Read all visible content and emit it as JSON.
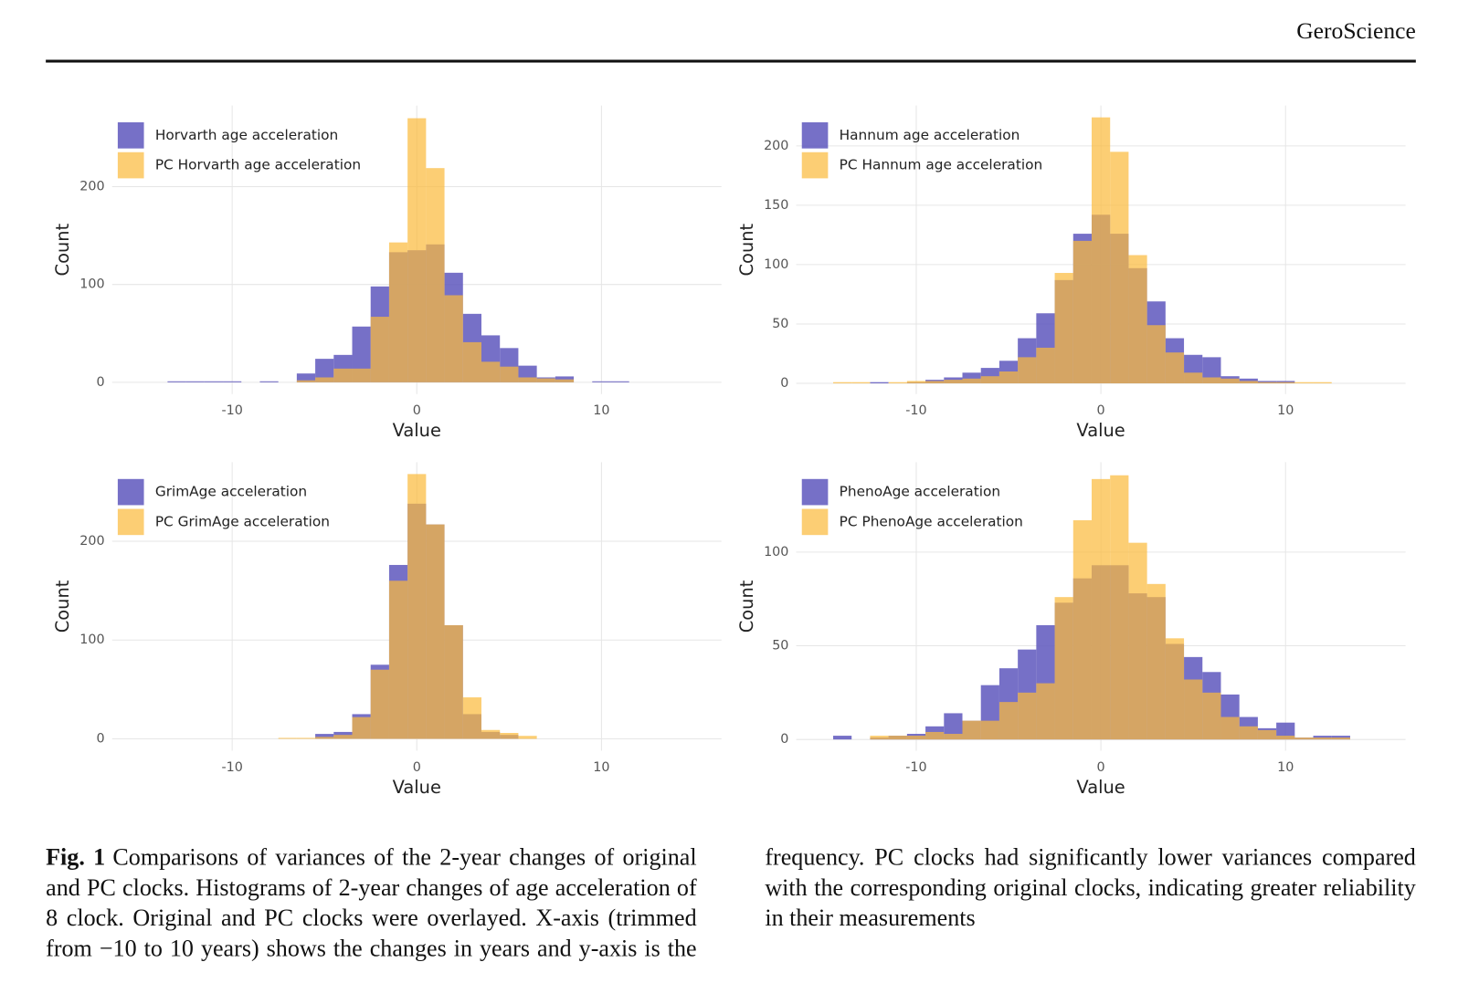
{
  "header": {
    "journal": "GeroScience"
  },
  "chart_data": [
    {
      "type": "histogram",
      "xlabel": "Value",
      "ylabel": "Count",
      "grid": true,
      "legend": "top-left",
      "bins": [
        -13.5,
        -12.5,
        -11.5,
        -10.5,
        -9.5,
        -8.5,
        -7.5,
        -6.5,
        -5.5,
        -4.5,
        -3.5,
        -2.5,
        -1.5,
        -0.5,
        0.5,
        1.5,
        2.5,
        3.5,
        4.5,
        5.5,
        6.5,
        7.5,
        8.5,
        9.5,
        10.5,
        11.5
      ],
      "series": [
        {
          "name": "Horvarth age acceleration",
          "color": "#5e57bd",
          "values": [
            1,
            1,
            1,
            1,
            0,
            1,
            0,
            9,
            24,
            28,
            57,
            98,
            133,
            135,
            141,
            112,
            70,
            48,
            35,
            17,
            5,
            6,
            0,
            1,
            1
          ]
        },
        {
          "name": "PC Horvarth age acceleration",
          "color": "#fbbb3e",
          "values": [
            0,
            0,
            0,
            0,
            0,
            0,
            0,
            2,
            5,
            14,
            14,
            67,
            143,
            270,
            219,
            89,
            41,
            21,
            16,
            5,
            4,
            3,
            0,
            0,
            0
          ]
        }
      ],
      "xlim": [
        -16.5,
        16.5
      ],
      "xticks": [
        -10,
        0,
        10
      ],
      "ylim": [
        -12,
        283
      ],
      "yticks": [
        0,
        100,
        200
      ]
    },
    {
      "type": "histogram",
      "xlabel": "Value",
      "ylabel": "Count",
      "grid": true,
      "legend": "top-left",
      "bins": [
        -14.5,
        -13.5,
        -12.5,
        -11.5,
        -10.5,
        -9.5,
        -8.5,
        -7.5,
        -6.5,
        -5.5,
        -4.5,
        -3.5,
        -2.5,
        -1.5,
        -0.5,
        0.5,
        1.5,
        2.5,
        3.5,
        4.5,
        5.5,
        6.5,
        7.5,
        8.5,
        9.5,
        10.5,
        11.5,
        12.5
      ],
      "series": [
        {
          "name": "Hannum age acceleration",
          "color": "#5e57bd",
          "values": [
            0,
            0,
            1,
            0,
            1,
            3,
            5,
            9,
            13,
            19,
            38,
            59,
            87,
            126,
            142,
            126,
            97,
            69,
            38,
            24,
            22,
            6,
            4,
            2,
            2,
            0,
            0
          ]
        },
        {
          "name": "PC Hannum age acceleration",
          "color": "#fbbb3e",
          "values": [
            1,
            1,
            0,
            1,
            2,
            2,
            3,
            4,
            6,
            10,
            22,
            30,
            93,
            120,
            224,
            195,
            108,
            49,
            26,
            9,
            5,
            4,
            2,
            1,
            1,
            1,
            1
          ]
        }
      ],
      "xlim": [
        -16.5,
        16.5
      ],
      "xticks": [
        -10,
        0,
        10
      ],
      "ylim": [
        -9,
        234
      ],
      "yticks": [
        0,
        50,
        100,
        150,
        200
      ]
    },
    {
      "type": "histogram",
      "xlabel": "Value",
      "ylabel": "Count",
      "grid": true,
      "legend": "top-left",
      "bins": [
        -7.5,
        -6.5,
        -5.5,
        -4.5,
        -3.5,
        -2.5,
        -1.5,
        -0.5,
        0.5,
        1.5,
        2.5,
        3.5,
        4.5,
        5.5,
        6.5
      ],
      "series": [
        {
          "name": "GrimAge acceleration",
          "color": "#5e57bd",
          "values": [
            0,
            0,
            5,
            7,
            25,
            75,
            176,
            238,
            217,
            115,
            25,
            7,
            4,
            0
          ]
        },
        {
          "name": "PC GrimAge acceleration",
          "color": "#fbbb3e",
          "values": [
            1,
            1,
            2,
            4,
            22,
            70,
            160,
            268,
            217,
            115,
            42,
            9,
            6,
            3
          ]
        }
      ],
      "xlim": [
        -16.5,
        16.5
      ],
      "xticks": [
        -10,
        0,
        10
      ],
      "ylim": [
        -12,
        280
      ],
      "yticks": [
        0,
        100,
        200
      ]
    },
    {
      "type": "histogram",
      "xlabel": "Value",
      "ylabel": "Count",
      "grid": true,
      "legend": "top-left",
      "bins": [
        -14.5,
        -13.5,
        -12.5,
        -11.5,
        -10.5,
        -9.5,
        -8.5,
        -7.5,
        -6.5,
        -5.5,
        -4.5,
        -3.5,
        -2.5,
        -1.5,
        -0.5,
        0.5,
        1.5,
        2.5,
        3.5,
        4.5,
        5.5,
        6.5,
        7.5,
        8.5,
        9.5,
        10.5,
        11.5,
        12.5,
        13.5,
        14.5
      ],
      "series": [
        {
          "name": "PhenoAge acceleration",
          "color": "#5e57bd",
          "values": [
            2,
            0,
            1,
            2,
            3,
            7,
            14,
            10,
            29,
            38,
            48,
            61,
            73,
            86,
            93,
            93,
            78,
            76,
            51,
            44,
            36,
            24,
            12,
            6,
            9,
            1,
            2,
            2,
            0
          ]
        },
        {
          "name": "PC PhenoAge acceleration",
          "color": "#fbbb3e",
          "values": [
            0,
            0,
            2,
            2,
            2,
            4,
            3,
            10,
            10,
            20,
            25,
            30,
            76,
            117,
            139,
            141,
            105,
            83,
            54,
            32,
            25,
            12,
            7,
            5,
            2,
            1,
            1,
            1,
            0
          ]
        }
      ],
      "xlim": [
        -16.5,
        16.5
      ],
      "xticks": [
        -10,
        0,
        10
      ],
      "ylim": [
        -6,
        148
      ],
      "yticks": [
        0,
        50,
        100
      ]
    }
  ],
  "caption": {
    "label": "Fig. 1",
    "text": "Comparisons of variances of the 2-year changes of original and PC clocks. Histograms of 2-year changes of age acceleration of 8 clock. Original and PC clocks were overlayed. X-axis (trimmed from −10 to 10 years) shows the changes in years and y-axis is the frequency. PC clocks had significantly lower variances compared with the corresponding original clocks, indicating greater reliability in their measurements"
  }
}
